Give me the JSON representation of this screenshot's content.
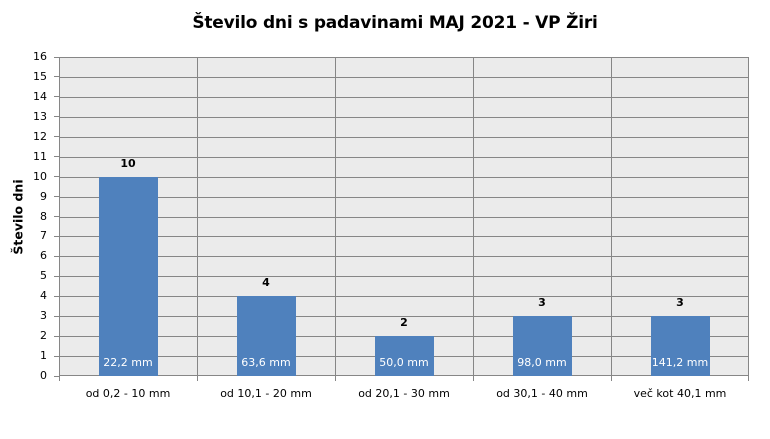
{
  "chart_data": {
    "type": "bar",
    "title": "Število dni s padavinami  MAJ 2021 - VP Žiri",
    "xlabel": "",
    "ylabel": "Število dni",
    "ylim": [
      0,
      16
    ],
    "yticks": [
      0,
      1,
      2,
      3,
      4,
      5,
      6,
      7,
      8,
      9,
      10,
      11,
      12,
      13,
      14,
      15,
      16
    ],
    "grid": true,
    "legend": null,
    "categories": [
      "od 0,2 - 10 mm",
      "od 10,1 - 20 mm",
      "od 20,1 - 30 mm",
      "od 30,1 - 40 mm",
      "več kot 40,1 mm"
    ],
    "values": [
      10,
      4,
      2,
      3,
      3
    ],
    "data_labels": [
      "10",
      "4",
      "2",
      "3",
      "3"
    ],
    "annotations": [
      "22,2 mm",
      "63,6 mm",
      "50,0 mm",
      "98,0 mm",
      "141,2 mm"
    ],
    "colors": {
      "bar": "#4f81bd",
      "plot_background": "#ebebeb",
      "gridline": "#868686"
    }
  }
}
